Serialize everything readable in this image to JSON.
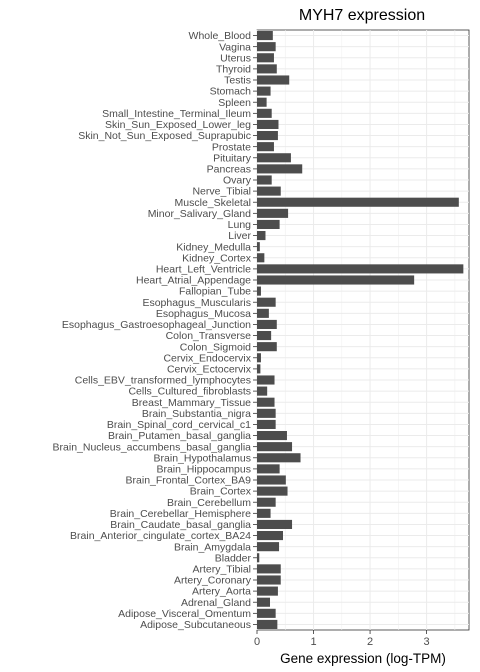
{
  "chart_data": {
    "type": "bar",
    "orientation": "horizontal",
    "title": "MYH7 expression",
    "xlabel": "Gene expression (log-TPM)",
    "ylabel": "",
    "xlim": [
      0,
      3.75
    ],
    "xticks": [
      0,
      1,
      2,
      3
    ],
    "grid": true,
    "legend": "none",
    "bar_color": "#4d4d4d",
    "categories": [
      "Whole_Blood",
      "Vagina",
      "Uterus",
      "Thyroid",
      "Testis",
      "Stomach",
      "Spleen",
      "Small_Intestine_Terminal_Ileum",
      "Skin_Sun_Exposed_Lower_leg",
      "Skin_Not_Sun_Exposed_Suprapubic",
      "Prostate",
      "Pituitary",
      "Pancreas",
      "Ovary",
      "Nerve_Tibial",
      "Muscle_Skeletal",
      "Minor_Salivary_Gland",
      "Lung",
      "Liver",
      "Kidney_Medulla",
      "Kidney_Cortex",
      "Heart_Left_Ventricle",
      "Heart_Atrial_Appendage",
      "Fallopian_Tube",
      "Esophagus_Muscularis",
      "Esophagus_Mucosa",
      "Esophagus_Gastroesophageal_Junction",
      "Colon_Transverse",
      "Colon_Sigmoid",
      "Cervix_Endocervix",
      "Cervix_Ectocervix",
      "Cells_EBV_transformed_lymphocytes",
      "Cells_Cultured_fibroblasts",
      "Breast_Mammary_Tissue",
      "Brain_Substantia_nigra",
      "Brain_Spinal_cord_cervical_c1",
      "Brain_Putamen_basal_ganglia",
      "Brain_Nucleus_accumbens_basal_ganglia",
      "Brain_Hypothalamus",
      "Brain_Hippocampus",
      "Brain_Frontal_Cortex_BA9",
      "Brain_Cortex",
      "Brain_Cerebellum",
      "Brain_Cerebellar_Hemisphere",
      "Brain_Caudate_basal_ganglia",
      "Brain_Anterior_cingulate_cortex_BA24",
      "Brain_Amygdala",
      "Bladder",
      "Artery_Tibial",
      "Artery_Coronary",
      "Artery_Aorta",
      "Adrenal_Gland",
      "Adipose_Visceral_Omentum",
      "Adipose_Subcutaneous"
    ],
    "values": [
      0.28,
      0.33,
      0.3,
      0.35,
      0.57,
      0.24,
      0.17,
      0.26,
      0.38,
      0.37,
      0.3,
      0.6,
      0.8,
      0.26,
      0.42,
      3.57,
      0.55,
      0.4,
      0.15,
      0.05,
      0.13,
      3.65,
      2.78,
      0.07,
      0.33,
      0.21,
      0.35,
      0.25,
      0.35,
      0.07,
      0.06,
      0.31,
      0.18,
      0.31,
      0.33,
      0.33,
      0.53,
      0.62,
      0.77,
      0.4,
      0.51,
      0.54,
      0.33,
      0.24,
      0.62,
      0.46,
      0.39,
      0.04,
      0.42,
      0.42,
      0.37,
      0.23,
      0.33,
      0.36
    ]
  }
}
